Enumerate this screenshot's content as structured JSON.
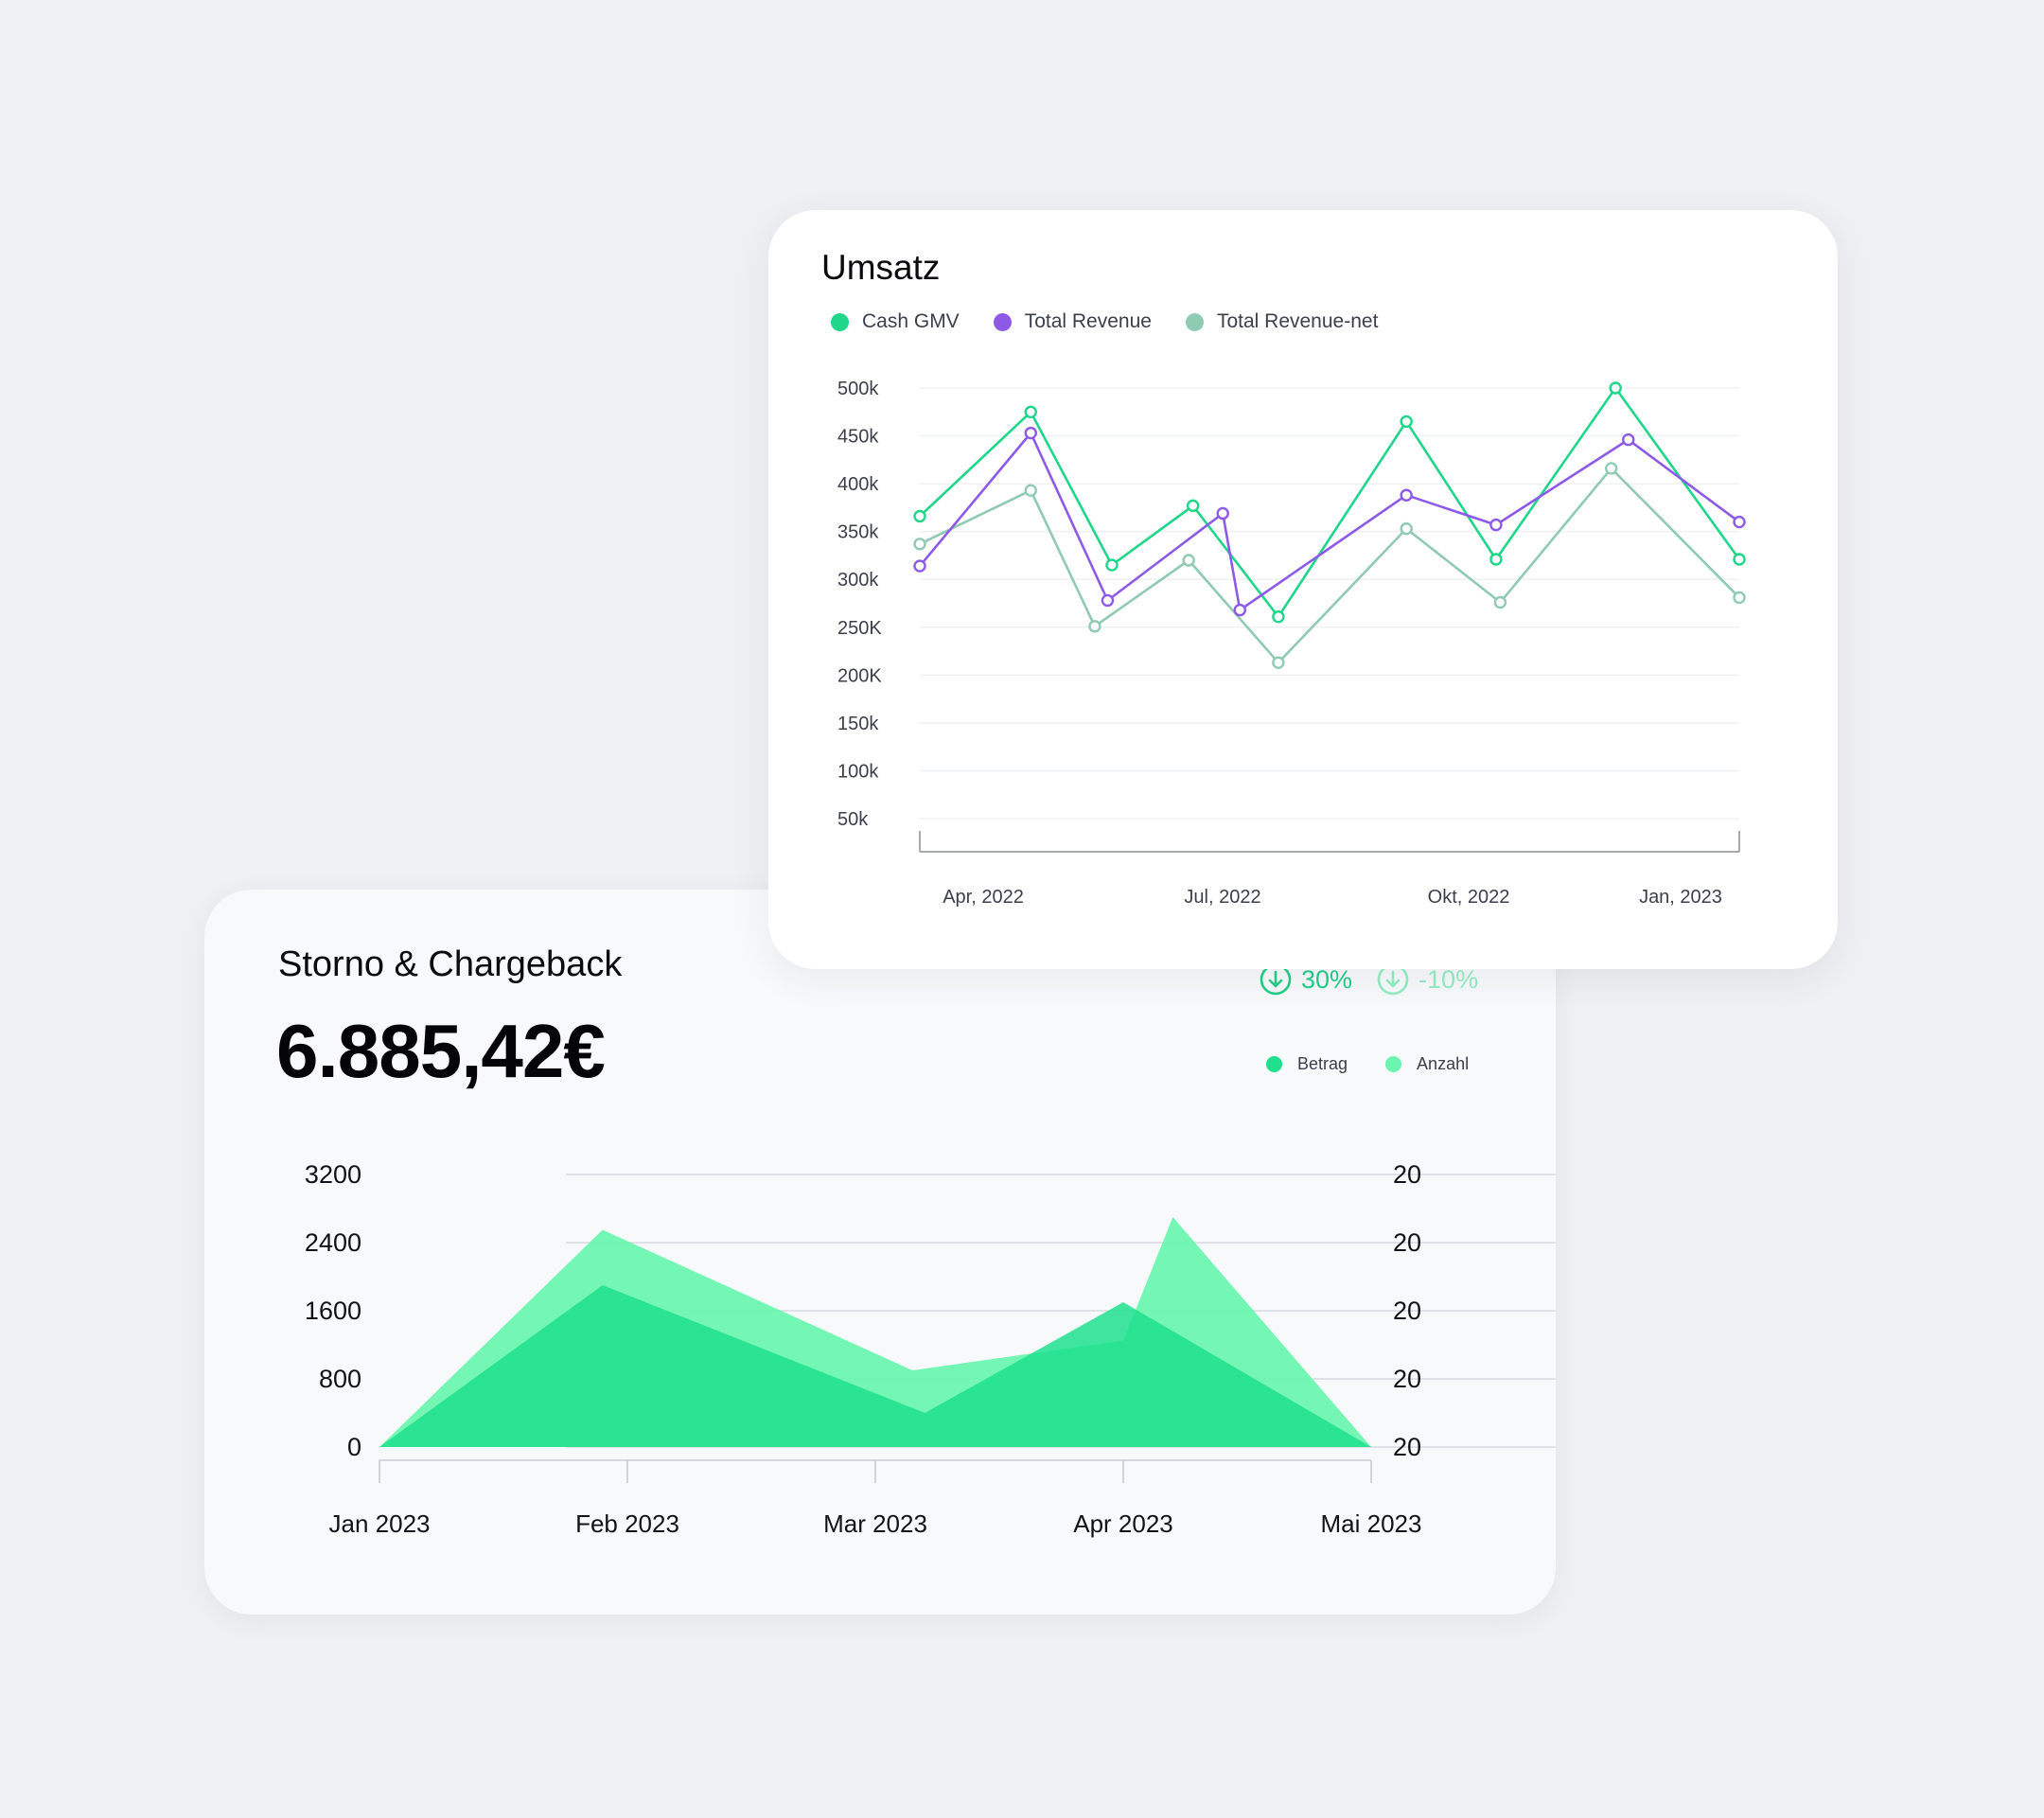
{
  "colors": {
    "cash_gmv": "#1fd68a",
    "total_revenue": "#8d5ae8",
    "total_revenue_net": "#8fcab2",
    "betrag": "#1ee08d",
    "anzahl": "#6df5b0",
    "badge_down": "#22cf87",
    "badge_down_light": "#93eec4"
  },
  "umsatz": {
    "title": "Umsatz",
    "legend": [
      {
        "label": "Cash GMV",
        "color": "#1fd68a"
      },
      {
        "label": "Total Revenue",
        "color": "#8d5ae8"
      },
      {
        "label": "Total Revenue-net",
        "color": "#8fcab2"
      }
    ]
  },
  "storno": {
    "title": "Storno & Chargeback",
    "total": "6.885,42€",
    "badges": [
      {
        "icon": "arrow-down-circle-icon",
        "value": "30%"
      },
      {
        "icon": "arrow-down-circle-icon",
        "value": "-10%"
      }
    ],
    "legend": [
      {
        "label": "Betrag",
        "color": "#1ee08d"
      },
      {
        "label": "Anzahl",
        "color": "#6df5b0"
      }
    ]
  },
  "chart_data": [
    {
      "type": "line",
      "title": "Umsatz",
      "y_ticks": [
        "500k",
        "450k",
        "400k",
        "350k",
        "300k",
        "250K",
        "200K",
        "150k",
        "100k",
        "50k"
      ],
      "ylim": [
        50000,
        500000
      ],
      "x_labels": [
        "Apr, 2022",
        "Jul, 2022",
        "Okt, 2022",
        "Jan, 2023"
      ],
      "grid": true,
      "legend_position": "top-left",
      "series": [
        {
          "name": "Cash GMV",
          "points": [
            [
              0.0,
              366000
            ],
            [
              1.3,
              475000
            ],
            [
              2.25,
              315000
            ],
            [
              3.2,
              377000
            ],
            [
              4.2,
              261000
            ],
            [
              5.7,
              465000
            ],
            [
              6.75,
              321000
            ],
            [
              8.15,
              500000
            ],
            [
              9.6,
              321000
            ]
          ]
        },
        {
          "name": "Total Revenue",
          "points": [
            [
              0.0,
              314000
            ],
            [
              1.3,
              453000
            ],
            [
              2.2,
              278000
            ],
            [
              3.55,
              369000
            ],
            [
              3.75,
              268000
            ],
            [
              5.7,
              388000
            ],
            [
              6.75,
              357000
            ],
            [
              8.3,
              446000
            ],
            [
              9.6,
              360000
            ]
          ]
        },
        {
          "name": "Total Revenue-net",
          "points": [
            [
              0.0,
              337000
            ],
            [
              1.3,
              393000
            ],
            [
              2.05,
              251000
            ],
            [
              3.15,
              320000
            ],
            [
              4.2,
              213000
            ],
            [
              5.7,
              353000
            ],
            [
              6.8,
              276000
            ],
            [
              8.1,
              416000
            ],
            [
              9.6,
              281000
            ]
          ]
        }
      ]
    },
    {
      "type": "area",
      "title": "Storno & Chargeback",
      "categories": [
        "Jan 2023",
        "Feb 2023",
        "Mar 2023",
        "Apr 2023",
        "Mai 2023"
      ],
      "y_ticks_left": [
        "3200",
        "2400",
        "1600",
        "800",
        "0"
      ],
      "y_ticks_right": [
        "20",
        "20",
        "20",
        "20",
        "20"
      ],
      "ylim": [
        0,
        3200
      ],
      "grid": true,
      "legend_position": "top-right",
      "series": [
        {
          "name": "Anzahl",
          "points": [
            [
              0.0,
              0
            ],
            [
              0.9,
              2550
            ],
            [
              2.15,
              900
            ],
            [
              3.0,
              1250
            ],
            [
              3.2,
              2700
            ],
            [
              4.0,
              0
            ]
          ]
        },
        {
          "name": "Betrag",
          "points": [
            [
              0.0,
              0
            ],
            [
              0.9,
              1900
            ],
            [
              2.2,
              400
            ],
            [
              3.0,
              1700
            ],
            [
              4.0,
              0
            ]
          ]
        }
      ]
    }
  ]
}
